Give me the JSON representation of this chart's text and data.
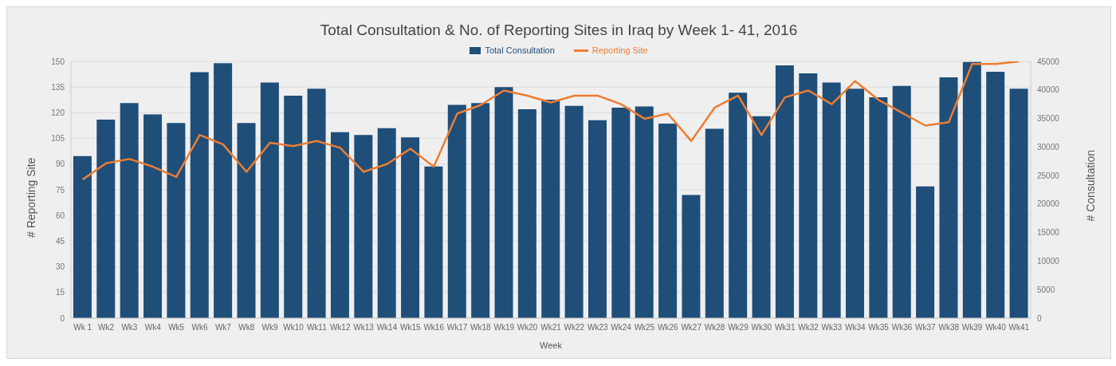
{
  "chart_data": {
    "type": "bar",
    "title": "Total Consultation & No. of Reporting Sites in Iraq by Week 1- 41, 2016",
    "xlabel": "Week",
    "ylabel": "# Reporting Site",
    "y2label": "# Consultation",
    "categories": [
      "Wk 1",
      "Wk2",
      "Wk3",
      "Wk4",
      "Wk5",
      "Wk6",
      "Wk7",
      "Wk8",
      "Wk9",
      "Wk10",
      "Wk11",
      "Wk12",
      "Wk13",
      "Wk14",
      "Wk15",
      "Wk16",
      "Wk17",
      "Wk18",
      "Wk19",
      "Wk20",
      "Wk21",
      "Wk22",
      "Wk23",
      "Wk24",
      "Wk25",
      "Wk26",
      "Wk27",
      "Wk28",
      "Wk29",
      "Wk30",
      "Wk31",
      "Wk32",
      "Wk33",
      "Wk34",
      "Wk35",
      "Wk36",
      "Wk37",
      "Wk38",
      "Wk39",
      "Wk40",
      "Wk41"
    ],
    "series": [
      {
        "name": "Total Consultation",
        "axis": "y2",
        "color": "#1f4e79",
        "values": [
          28400,
          34800,
          37700,
          35700,
          34200,
          43100,
          44700,
          34200,
          41300,
          39000,
          40200,
          32600,
          32100,
          33300,
          31700,
          26600,
          37400,
          37700,
          40500,
          36600,
          38300,
          37200,
          34700,
          36900,
          37100,
          34100,
          21600,
          33200,
          39500,
          35400,
          44300,
          42900,
          41300,
          40200,
          38700,
          40700,
          23100,
          42200,
          44900,
          43200,
          40200
        ]
      },
      {
        "name": "Reporting Site",
        "type": "line",
        "axis": "y",
        "color": "#ed7d31",
        "values": [
          81,
          90.5,
          93,
          88.5,
          82.5,
          107,
          101.5,
          85.5,
          102.5,
          100.5,
          103.5,
          99.5,
          85.5,
          90,
          99,
          88.5,
          119.5,
          124.5,
          133,
          130,
          126,
          130,
          130,
          125,
          116.5,
          119.5,
          103.5,
          123,
          130,
          107,
          129,
          133,
          125,
          138.5,
          127.5,
          120,
          112.5,
          114.5,
          148.5,
          148.5,
          150
        ]
      }
    ],
    "ylim": [
      0,
      150
    ],
    "yticks": [
      0,
      15,
      30,
      45,
      60,
      75,
      90,
      105,
      120,
      135,
      150
    ],
    "y2lim": [
      0,
      45000
    ],
    "y2ticks": [
      0,
      5000,
      10000,
      15000,
      20000,
      25000,
      30000,
      35000,
      40000,
      45000
    ],
    "grid": "y",
    "legend": "top",
    "marker": "none",
    "line_style": "solid"
  }
}
